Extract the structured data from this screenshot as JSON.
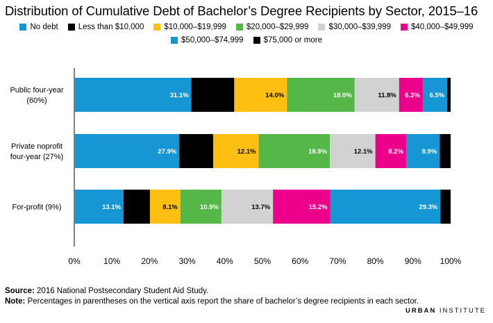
{
  "title": "Distribution of Cumulative Debt of Bachelor’s Degree Recipients by Sector, 2015–16",
  "legend": {
    "row1": [
      {
        "label": "No debt",
        "color": "#1696d2"
      },
      {
        "label": "Less than $10,000",
        "color": "#000000"
      },
      {
        "label": "$10,000–$19,999",
        "color": "#fdbf11"
      },
      {
        "label": "$20,000–$29,999",
        "color": "#55b748"
      },
      {
        "label": "$30,000–$39,999",
        "color": "#d2d2d2"
      },
      {
        "label": "$40,000–$49,999",
        "color": "#ec008b"
      }
    ],
    "row2": [
      {
        "label": "$50,000–$74,999",
        "color": "#1696d2"
      },
      {
        "label": "$75,000 or more",
        "color": "#000000"
      }
    ]
  },
  "chart_data": {
    "type": "bar",
    "orientation": "horizontal",
    "stacked": true,
    "categories": [
      [
        "Public four-year",
        "(60%)"
      ],
      [
        "Private noprofit",
        "four-year (27%)"
      ],
      [
        "For-profit (9%)"
      ]
    ],
    "series": [
      {
        "name": "No debt",
        "color": "#1696d2",
        "values": [
          31.1,
          27.9,
          13.1
        ],
        "labels": [
          "31.1%",
          "27.9%",
          "13.1%"
        ],
        "label_color": "#ffffff"
      },
      {
        "name": "Less than $10,000",
        "color": "#000000",
        "values": [
          11.4,
          9.0,
          7.0
        ],
        "labels": [
          "",
          "",
          ""
        ],
        "label_color": "#ffffff"
      },
      {
        "name": "$10,000–$19,999",
        "color": "#fdbf11",
        "values": [
          14.0,
          12.1,
          8.1
        ],
        "labels": [
          "14.0%",
          "12.1%",
          "8.1%"
        ],
        "label_color": "#000000"
      },
      {
        "name": "$20,000–$29,999",
        "color": "#55b748",
        "values": [
          18.0,
          18.9,
          10.9
        ],
        "labels": [
          "18.0%",
          "18.9%",
          "10.9%"
        ],
        "label_color": "#ffffff"
      },
      {
        "name": "$30,000–$39,999",
        "color": "#d2d2d2",
        "values": [
          11.8,
          12.1,
          13.7
        ],
        "labels": [
          "11.8%",
          "12.1%",
          "13.7%"
        ],
        "label_color": "#000000"
      },
      {
        "name": "$40,000–$49,999",
        "color": "#ec008b",
        "values": [
          6.3,
          8.2,
          15.2
        ],
        "labels": [
          "6.3%",
          "8.2%",
          "15.2%"
        ],
        "label_color": "#ffffff"
      },
      {
        "name": "$50,000–$74,999",
        "color": "#1696d2",
        "values": [
          6.5,
          8.9,
          29.3
        ],
        "labels": [
          "6.5%",
          "8.9%",
          "29.3%"
        ],
        "label_color": "#ffffff"
      },
      {
        "name": "$75,000 or more",
        "color": "#000000",
        "values": [
          0.9,
          2.9,
          2.7
        ],
        "labels": [
          "",
          "",
          ""
        ],
        "label_color": "#ffffff"
      }
    ],
    "xlim": [
      0,
      100
    ],
    "xticks": [
      0,
      10,
      20,
      30,
      40,
      50,
      60,
      70,
      80,
      90,
      100
    ],
    "xtick_labels": [
      "0%",
      "10%",
      "20%",
      "30%",
      "40%",
      "50%",
      "60%",
      "70%",
      "80%",
      "90%",
      "100%"
    ],
    "grid": false,
    "legend_position": "top-center"
  },
  "footer": {
    "source_label": "Source:",
    "source_text": " 2016 National Postsecondary Student Aid Study.",
    "note_label": "Note:",
    "note_text": " Percentages in parentheses on the vertical axis report the share of bachelor’s degree recipients in each sector.",
    "brand_word1": "URBAN",
    "brand_word2": " INSTITUTE"
  }
}
